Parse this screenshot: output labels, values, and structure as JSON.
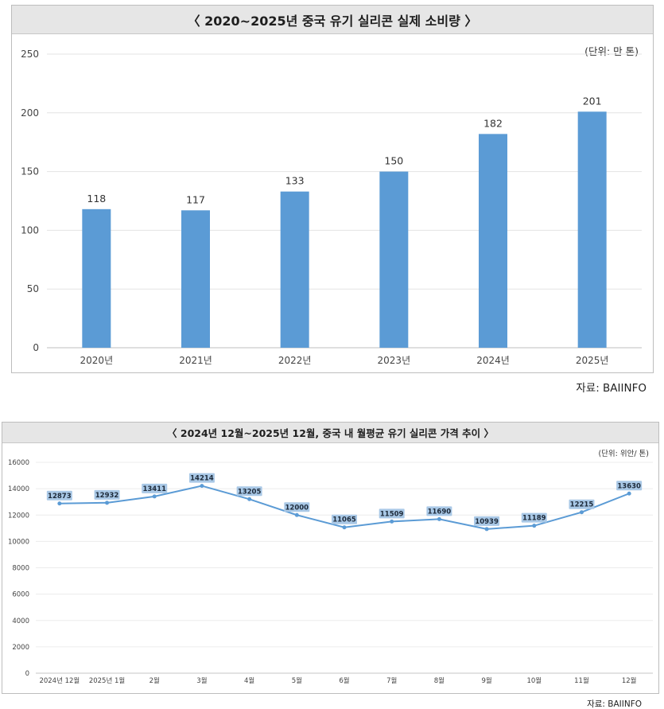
{
  "chart_data": [
    {
      "type": "bar",
      "title": "〈 2020~2025년 중국 유기 실리콘 실제 소비량 〉",
      "unit_label": "(단위: 만 톤)",
      "categories": [
        "2020년",
        "2021년",
        "2022년",
        "2023년",
        "2024년",
        "2025년"
      ],
      "values": [
        118,
        117,
        133,
        150,
        182,
        201
      ],
      "y_ticks": [
        "0",
        "50",
        "100",
        "150",
        "200",
        "250"
      ],
      "ylim": [
        0,
        250
      ],
      "grid": true,
      "bar_color": "#5b9bd5",
      "source": "자료: BAIINFO"
    },
    {
      "type": "line",
      "title": "〈 2024년 12월~2025년 12월, 중국 내 월평균 유기 실리콘 가격 추이 〉",
      "unit_label": "(단위: 위안/ 톤)",
      "categories": [
        "2024년 12월",
        "2025년 1월",
        "2월",
        "3월",
        "4월",
        "5월",
        "6월",
        "7월",
        "8월",
        "9월",
        "10월",
        "11월",
        "12월"
      ],
      "values": [
        12873,
        12932,
        13411,
        14214,
        13205,
        12000,
        11065,
        11509,
        11690,
        10939,
        11189,
        12215,
        13630
      ],
      "y_ticks": [
        "0",
        "2000",
        "4000",
        "6000",
        "8000",
        "10000",
        "12000",
        "14000",
        "16000"
      ],
      "ylim": [
        0,
        16000
      ],
      "grid": true,
      "line_color": "#5b9bd5",
      "label_bg": "#a9c8e6",
      "source": "자료: BAIINFO"
    }
  ]
}
